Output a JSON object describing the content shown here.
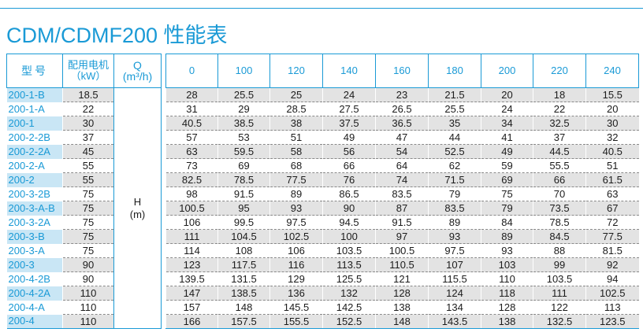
{
  "title": "CDM/CDMF200 性能表",
  "header": {
    "model_label": "型号",
    "power_label_line1": "配用电机",
    "power_label_line2": "（kW）",
    "q_label_line1": "Q",
    "q_label_line2": "(m³/h)",
    "h_label_line1": "H",
    "h_label_line2": "(m)",
    "flows": [
      "0",
      "100",
      "120",
      "140",
      "160",
      "180",
      "200",
      "220",
      "240"
    ]
  },
  "rows": [
    {
      "model": "200-1-B",
      "power": "18.5",
      "values": [
        "28",
        "25.5",
        "25",
        "24",
        "23",
        "21.5",
        "20",
        "18",
        "15.5"
      ]
    },
    {
      "model": "200-1-A",
      "power": "22",
      "values": [
        "31",
        "29",
        "28.5",
        "27.5",
        "26.5",
        "25.5",
        "24",
        "22",
        "20"
      ]
    },
    {
      "model": "200-1",
      "power": "30",
      "values": [
        "40.5",
        "38.5",
        "38",
        "37.5",
        "36.5",
        "35",
        "34",
        "32.5",
        "30"
      ]
    },
    {
      "model": "200-2-2B",
      "power": "37",
      "values": [
        "57",
        "53",
        "51",
        "49",
        "47",
        "44",
        "41",
        "37",
        "32"
      ]
    },
    {
      "model": "200-2-2A",
      "power": "45",
      "values": [
        "63",
        "59.5",
        "58",
        "56",
        "54",
        "52.5",
        "49",
        "44.5",
        "40.5"
      ]
    },
    {
      "model": "200-2-A",
      "power": "55",
      "values": [
        "73",
        "69",
        "68",
        "66",
        "64",
        "62",
        "59",
        "55.5",
        "51"
      ]
    },
    {
      "model": "200-2",
      "power": "55",
      "values": [
        "82.5",
        "78.5",
        "77.5",
        "76",
        "74",
        "71.5",
        "69",
        "66",
        "61.5"
      ]
    },
    {
      "model": "200-3-2B",
      "power": "75",
      "values": [
        "98",
        "91.5",
        "89",
        "86.5",
        "83.5",
        "79",
        "75",
        "70",
        "63"
      ]
    },
    {
      "model": "200-3-A-B",
      "power": "75",
      "values": [
        "100.5",
        "95",
        "93",
        "90",
        "87",
        "83.5",
        "79",
        "73.5",
        "67"
      ]
    },
    {
      "model": "200-3-2A",
      "power": "75",
      "values": [
        "106",
        "99.5",
        "97.5",
        "94.5",
        "91.5",
        "89",
        "84",
        "78.5",
        "72"
      ]
    },
    {
      "model": "200-3-B",
      "power": "75",
      "values": [
        "111",
        "104.5",
        "102.5",
        "100",
        "97",
        "93",
        "89",
        "84.5",
        "77.5"
      ]
    },
    {
      "model": "200-3-A",
      "power": "75",
      "values": [
        "114",
        "108",
        "106",
        "103.5",
        "100.5",
        "97.5",
        "93",
        "88",
        "81.5"
      ]
    },
    {
      "model": "200-3",
      "power": "90",
      "values": [
        "123",
        "117.5",
        "116",
        "113.5",
        "110.5",
        "107",
        "103",
        "99",
        "92"
      ]
    },
    {
      "model": "200-4-2B",
      "power": "90",
      "values": [
        "139.5",
        "131.5",
        "129",
        "125.5",
        "121",
        "115.5",
        "110",
        "103.5",
        "94"
      ]
    },
    {
      "model": "200-4-2A",
      "power": "110",
      "values": [
        "147",
        "138.5",
        "136",
        "132",
        "128",
        "124",
        "118",
        "111",
        "102.5"
      ]
    },
    {
      "model": "200-4-A",
      "power": "110",
      "values": [
        "157",
        "148",
        "145.5",
        "142.5",
        "138",
        "134",
        "128",
        "122",
        "113"
      ]
    },
    {
      "model": "200-4",
      "power": "110",
      "values": [
        "166",
        "157.5",
        "155.5",
        "152.5",
        "148",
        "143.5",
        "138",
        "132.5",
        "123.5"
      ]
    }
  ],
  "colors": {
    "accent": "#1a9ad6",
    "row_shade_model": "#c9e6f5",
    "row_shade_values": "#e3e3e3"
  }
}
